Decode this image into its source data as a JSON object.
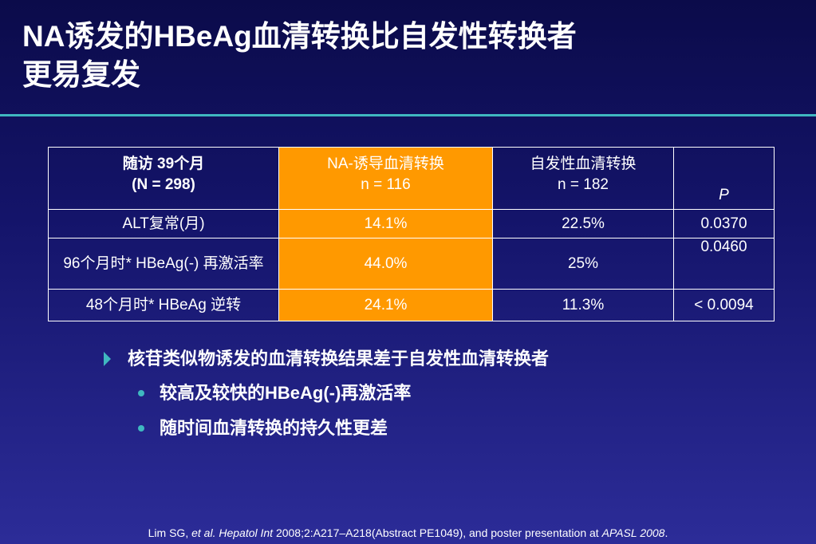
{
  "title": {
    "line1": "NA诱发的HBeAg血清转换比自发性转换者",
    "line2": "更易复发"
  },
  "table": {
    "header": {
      "visit_line1": "随访 39个月",
      "visit_line2": "(N = 298)",
      "na_line1": "NA-诱导血清转换",
      "na_line2": "n = 116",
      "spont_line1": "自发性血清转换",
      "spont_line2": "n = 182",
      "p": "P"
    },
    "rows": [
      {
        "label": "ALT复常(月)",
        "na": "14.1%",
        "spont": "22.5%",
        "p": "0.0370"
      },
      {
        "label": "96个月时* HBeAg(-) 再激活率",
        "na": "44.0%",
        "spont": "25%",
        "p": "0.0460"
      },
      {
        "label": "48个月时* HBeAg 逆转",
        "na": "24.1%",
        "spont": "11.3%",
        "p": "< 0.0094"
      }
    ]
  },
  "bullets": {
    "main": "核苷类似物诱发的血清转换结果差于自发性血清转换者",
    "sub": [
      "较高及较快的HBeAg(-)再激活率",
      "随时间血清转换的持久性更差"
    ]
  },
  "citation": {
    "authors": "Lim SG, ",
    "etal_journal": "et al. Hepatol Int",
    "details": " 2008;2:A217–A218(Abstract PE1049), and poster presentation at ",
    "conference": "APASL 2008",
    "end": "."
  },
  "colors": {
    "background_top": "#0b0b4a",
    "background_bottom": "#2c2c98",
    "accent": "#3fb8c0",
    "highlight": "#ff9900"
  },
  "icons": {
    "main_bullet": "triangle-arrow-icon",
    "sub_bullet": "dot-icon"
  }
}
